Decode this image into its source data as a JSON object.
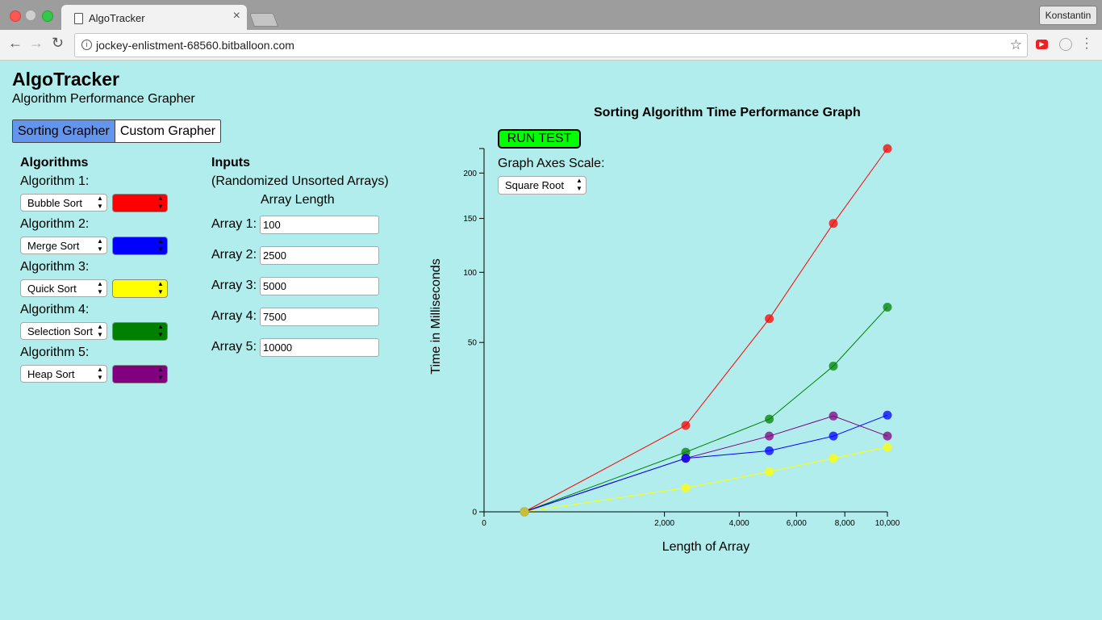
{
  "browser": {
    "tab_title": "AlgoTracker",
    "url": "jockey-enlistment-68560.bitballoon.com",
    "profile_name": "Konstantin"
  },
  "app": {
    "title": "AlgoTracker",
    "subtitle": "Algorithm Performance Grapher",
    "tabs": [
      {
        "label": "Sorting Grapher",
        "active": true
      },
      {
        "label": "Custom Grapher",
        "active": false
      }
    ]
  },
  "algorithms": {
    "heading": "Algorithms",
    "items": [
      {
        "label": "Algorithm 1:",
        "selected": "Bubble Sort",
        "color": "#ff0000"
      },
      {
        "label": "Algorithm 2:",
        "selected": "Merge Sort",
        "color": "#0000ff"
      },
      {
        "label": "Algorithm 3:",
        "selected": "Quick Sort",
        "color": "#ffff00"
      },
      {
        "label": "Algorithm 4:",
        "selected": "Selection Sort",
        "color": "#008000"
      },
      {
        "label": "Algorithm 5:",
        "selected": "Heap Sort",
        "color": "#800080"
      }
    ]
  },
  "inputs": {
    "heading": "Inputs",
    "subheading": "(Randomized Unsorted Arrays)",
    "column_label": "Array Length",
    "arrays": [
      {
        "label": "Array 1:",
        "value": "100"
      },
      {
        "label": "Array 2:",
        "value": "2500"
      },
      {
        "label": "Array 3:",
        "value": "5000"
      },
      {
        "label": "Array 4:",
        "value": "7500"
      },
      {
        "label": "Array 5:",
        "value": "10000"
      }
    ]
  },
  "controls": {
    "run_label": "RUN TEST",
    "scale_label": "Graph Axes Scale:",
    "scale_selected": "Square Root"
  },
  "chart_data": {
    "type": "line",
    "title": "Sorting Algorithm Time Performance Graph",
    "xlabel": "Length of Array",
    "ylabel": "Time in Milliseconds",
    "scale": "sqrt",
    "xlim": [
      0,
      10000
    ],
    "ylim": [
      0,
      230
    ],
    "x_ticks": [
      0,
      2000,
      4000,
      6000,
      8000,
      10000
    ],
    "x_tick_labels": [
      "0",
      "2,000",
      "4,000",
      "6,000",
      "8,000",
      "10,000"
    ],
    "y_ticks": [
      0,
      50,
      100,
      150,
      200
    ],
    "x": [
      100,
      2500,
      5000,
      7500,
      10000
    ],
    "series": [
      {
        "color": "#ff0000",
        "values": [
          0,
          13,
          65,
          145,
          230
        ]
      },
      {
        "color": "#008000",
        "values": [
          0,
          6.2,
          15,
          37,
          73
        ]
      },
      {
        "color": "#800080",
        "values": [
          0,
          5,
          10,
          16,
          10
        ]
      },
      {
        "color": "#0000ff",
        "values": [
          0,
          5,
          6.5,
          10,
          16.3
        ]
      },
      {
        "color": "#ffff00",
        "values": [
          0,
          1,
          2.8,
          5,
          7.3
        ]
      }
    ]
  }
}
